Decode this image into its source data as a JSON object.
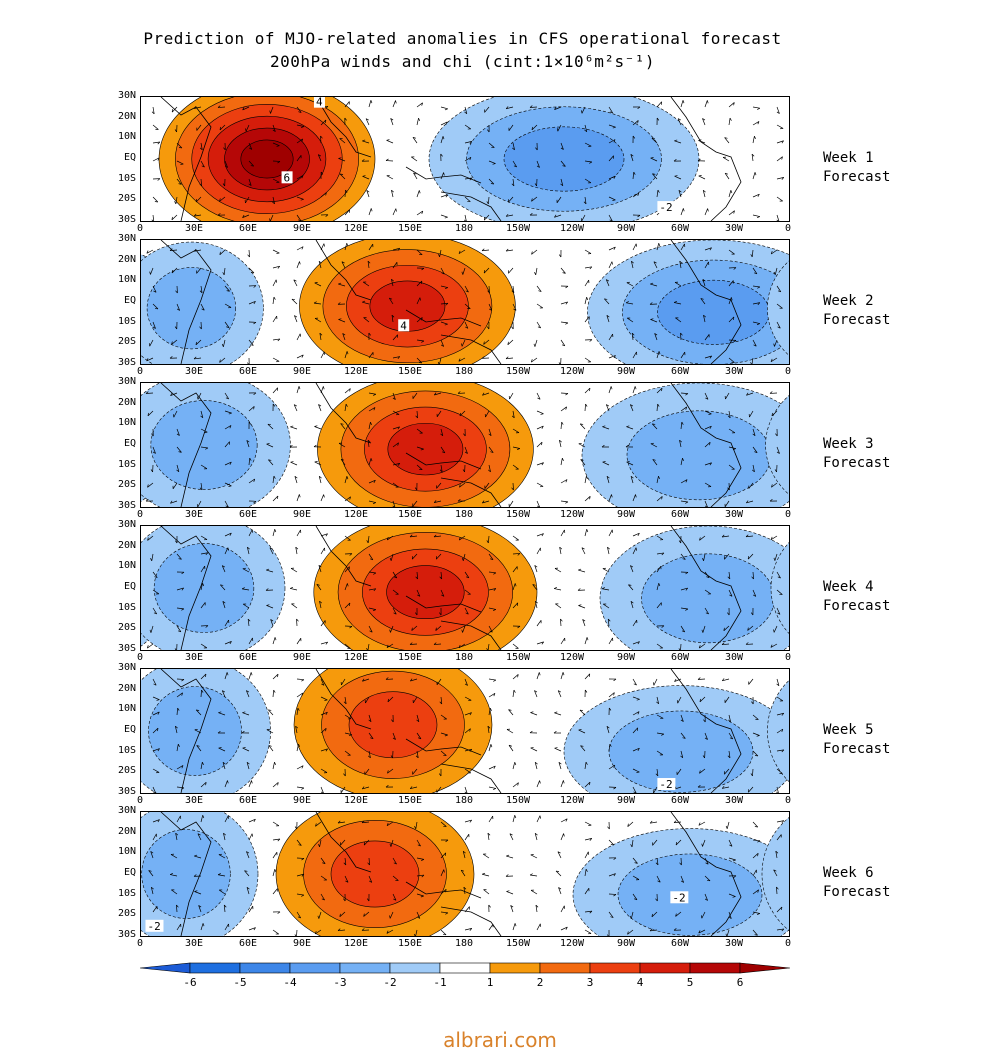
{
  "header": {
    "line1": "Prediction of MJO-related anomalies in CFS operational forecast",
    "line2": "200hPa winds and chi (cint:1×10⁶m²s⁻¹)"
  },
  "lat_labels": [
    "30N",
    "20N",
    "10N",
    "EQ",
    "10S",
    "20S",
    "30S"
  ],
  "lon_labels": [
    "0",
    "30E",
    "60E",
    "90E",
    "120E",
    "150E",
    "180",
    "150W",
    "120W",
    "90W",
    "60W",
    "30W",
    "0"
  ],
  "panels": [
    {
      "week": "Week 1",
      "forecast": "Forecast",
      "contour_labels": [
        "4",
        "6",
        "-2"
      ],
      "features": [
        {
          "sign": 1,
          "lon": 70,
          "lat": 0,
          "w": 60,
          "h": 38,
          "peak": 6
        },
        {
          "sign": -1,
          "lon": 235,
          "lat": 0,
          "w": 75,
          "h": 35,
          "peak": 3
        }
      ]
    },
    {
      "week": "Week 2",
      "forecast": "Forecast",
      "contour_labels": [
        "4"
      ],
      "features": [
        {
          "sign": 1,
          "lon": 148,
          "lat": -2,
          "w": 60,
          "h": 35,
          "peak": 4
        },
        {
          "sign": -1,
          "lon": 318,
          "lat": -5,
          "w": 70,
          "h": 35,
          "peak": 3
        },
        {
          "sign": -1,
          "lon": 28,
          "lat": -3,
          "w": 40,
          "h": 32,
          "peak": 2
        }
      ]
    },
    {
      "week": "Week 3",
      "forecast": "Forecast",
      "contour_labels": [],
      "features": [
        {
          "sign": 1,
          "lon": 158,
          "lat": -2,
          "w": 60,
          "h": 36,
          "peak": 4
        },
        {
          "sign": -1,
          "lon": 310,
          "lat": -5,
          "w": 65,
          "h": 35,
          "peak": 2
        },
        {
          "sign": -1,
          "lon": 35,
          "lat": 0,
          "w": 48,
          "h": 35,
          "peak": 2
        }
      ]
    },
    {
      "week": "Week 4",
      "forecast": "Forecast",
      "contour_labels": [],
      "features": [
        {
          "sign": 1,
          "lon": 158,
          "lat": -2,
          "w": 62,
          "h": 37,
          "peak": 4
        },
        {
          "sign": -1,
          "lon": 315,
          "lat": -5,
          "w": 60,
          "h": 35,
          "peak": 2
        },
        {
          "sign": -1,
          "lon": 35,
          "lat": 0,
          "w": 45,
          "h": 35,
          "peak": 2
        }
      ]
    },
    {
      "week": "Week 5",
      "forecast": "Forecast",
      "contour_labels": [
        "-2"
      ],
      "features": [
        {
          "sign": 1,
          "lon": 140,
          "lat": 3,
          "w": 55,
          "h": 36,
          "peak": 3
        },
        {
          "sign": -1,
          "lon": 300,
          "lat": -10,
          "w": 65,
          "h": 32,
          "peak": 2
        },
        {
          "sign": -1,
          "lon": 30,
          "lat": 0,
          "w": 42,
          "h": 35,
          "peak": 2
        }
      ]
    },
    {
      "week": "Week 6",
      "forecast": "Forecast",
      "contour_labels": [
        "-2",
        "-2"
      ],
      "features": [
        {
          "sign": 1,
          "lon": 130,
          "lat": 0,
          "w": 55,
          "h": 36,
          "peak": 3
        },
        {
          "sign": -1,
          "lon": 305,
          "lat": -10,
          "w": 65,
          "h": 32,
          "peak": 2
        },
        {
          "sign": -1,
          "lon": 25,
          "lat": 0,
          "w": 40,
          "h": 35,
          "peak": 2
        }
      ]
    }
  ],
  "colorbar": {
    "labels": [
      "-6",
      "-5",
      "-4",
      "-3",
      "-2",
      "-1",
      "1",
      "2",
      "3",
      "4",
      "5",
      "6"
    ],
    "colors": [
      "#1c5bd6",
      "#1e6fe0",
      "#3d86e8",
      "#5a9cf0",
      "#75b1f5",
      "#a0cbf7",
      "#ffffff",
      "#f69a0c",
      "#f26a10",
      "#ec3f10",
      "#d51d0b",
      "#b50707",
      "#9f0000"
    ]
  },
  "watermark": "albrari.com"
}
